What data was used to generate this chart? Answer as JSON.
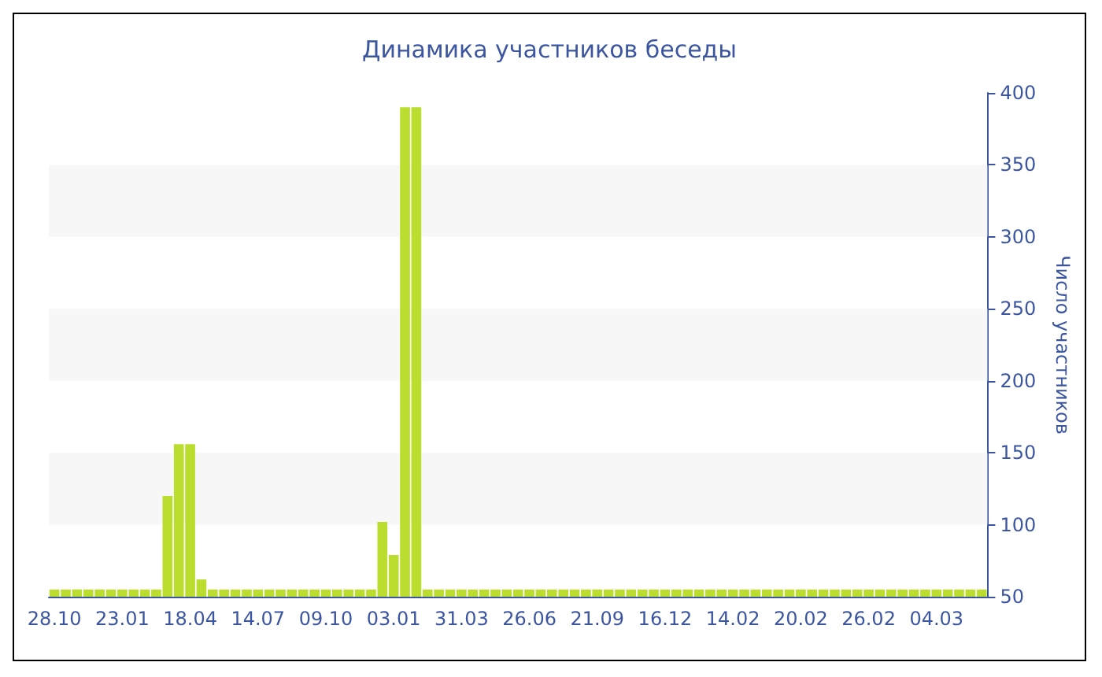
{
  "chart_data": {
    "type": "bar",
    "title": "Динамика участников беседы",
    "ylabel": "Число участников",
    "categories": [
      "28.10",
      null,
      null,
      null,
      null,
      null,
      "23.01",
      null,
      null,
      null,
      null,
      null,
      "18.04",
      null,
      null,
      null,
      null,
      null,
      "14.07",
      null,
      null,
      null,
      null,
      null,
      "09.10",
      null,
      null,
      null,
      null,
      null,
      "03.01",
      null,
      null,
      null,
      null,
      null,
      "31.03",
      null,
      null,
      null,
      null,
      null,
      "26.06",
      null,
      null,
      null,
      null,
      null,
      "21.09",
      null,
      null,
      null,
      null,
      null,
      "16.12",
      null,
      null,
      null,
      null,
      null,
      "14.02",
      null,
      null,
      null,
      null,
      null,
      "20.02",
      null,
      null,
      null,
      null,
      null,
      "26.02",
      null,
      null,
      null,
      null,
      null,
      "04.03",
      null,
      null,
      null,
      null
    ],
    "values": [
      55,
      55,
      55,
      55,
      55,
      55,
      55,
      55,
      55,
      55,
      120,
      156,
      156,
      62,
      55,
      55,
      55,
      55,
      55,
      55,
      55,
      55,
      55,
      55,
      55,
      55,
      55,
      55,
      55,
      102,
      79,
      390,
      390,
      55,
      55,
      55,
      55,
      55,
      55,
      55,
      55,
      55,
      55,
      55,
      55,
      55,
      55,
      55,
      55,
      55,
      55,
      55,
      55,
      55,
      55,
      55,
      55,
      55,
      55,
      55,
      55,
      55,
      55,
      55,
      55,
      55,
      55,
      55,
      55,
      55,
      55,
      55,
      55,
      55,
      55,
      55,
      55,
      55,
      55,
      55,
      55,
      55,
      55
    ],
    "color": "#bbdd2f",
    "ylim": [
      50,
      400
    ],
    "yticks": [
      50,
      100,
      150,
      200,
      250,
      300,
      350,
      400
    ],
    "bands": [
      {
        "axis": "y",
        "from": 100,
        "to": 150,
        "color": "#f7f7f7"
      },
      {
        "axis": "y",
        "from": 200,
        "to": 250,
        "color": "#f7f7f7"
      },
      {
        "axis": "y",
        "from": 300,
        "to": 350,
        "color": "#f7f7f7"
      }
    ]
  }
}
